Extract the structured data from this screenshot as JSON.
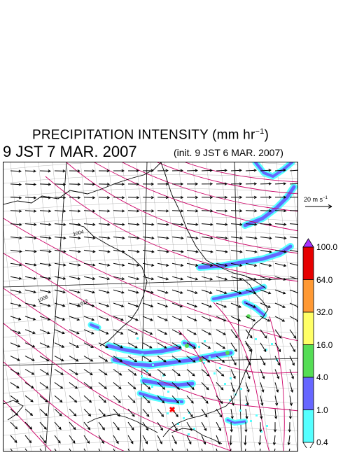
{
  "title_main": "PRECIPITATION INTENSITY (mm hr",
  "title_sup": "−1",
  "title_close": ")",
  "valid_time": "9 JST 7 MAR. 2007",
  "init_time": "(init. 9 JST 6 MAR. 2007)",
  "wind_reference": {
    "label_main": "20 m s",
    "label_sup": "−1"
  },
  "isobar_labels": [
    "1004",
    "1008",
    "1012"
  ],
  "colorbar": {
    "labels": [
      "100.0",
      "64.0",
      "32.0",
      "16.0",
      "4.0",
      "1.0",
      "0.4"
    ],
    "colors": [
      "#e60000",
      "#ff9933",
      "#ffff66",
      "#55dd55",
      "#6666ff",
      "#55ffff"
    ],
    "over_color": "#aa33ff",
    "under_color": "#ffffff"
  },
  "colors": {
    "isobar": "#cc0066",
    "coastline": "#000000",
    "grid": "#888888",
    "wind_arrow": "#000000",
    "marker": "#ff0000"
  }
}
